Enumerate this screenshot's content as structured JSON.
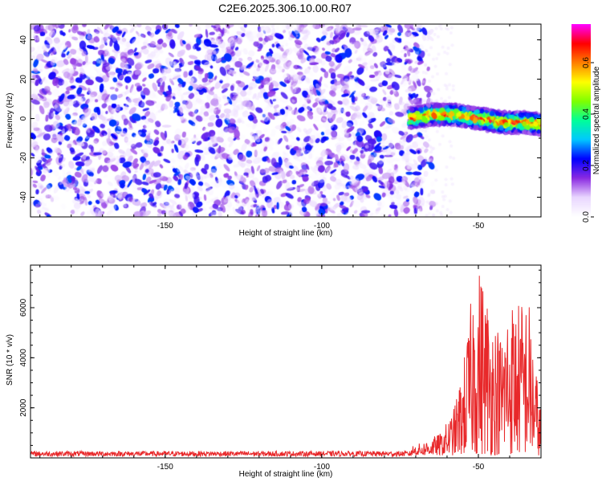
{
  "title": "C2E6.2025.306.10.00.R07",
  "chart_data": [
    {
      "type": "heatmap",
      "xlabel": "Height of straight line (km)",
      "ylabel": "Frequency (Hz)",
      "xlim": [
        -193,
        -30
      ],
      "ylim": [
        -50,
        48
      ],
      "xticks": [
        -150,
        -100,
        -50
      ],
      "yticks": [
        -40,
        -20,
        0,
        20,
        40
      ],
      "tick_labels_x": [
        "-150",
        "-100",
        "-50"
      ],
      "tick_labels_y": [
        "-40",
        "-20",
        "0",
        "20",
        "40"
      ],
      "colorbar": {
        "label": "Normalized spectral amplitude",
        "range": [
          0,
          0.75
        ],
        "ticks": [
          0.0,
          0.2,
          0.4,
          0.6
        ],
        "tick_labels": [
          "0.0",
          "0.2",
          "0.4",
          "0.6"
        ],
        "colormap": [
          "#ffffff",
          "#e9d6ff",
          "#8a2be2",
          "#0000ff",
          "#00c8ff",
          "#00ff99",
          "#7fff00",
          "#ffff00",
          "#ff8000",
          "#ff0000",
          "#ff00ff"
        ]
      },
      "noise_region": {
        "x_range": [
          -193,
          -68
        ],
        "freq_range": [
          -50,
          48
        ],
        "typical_amplitude": 0.05
      },
      "signal_trace": {
        "x_range": [
          -72,
          -30
        ],
        "center_freq": [
          {
            "x": -72,
            "y": 0
          },
          {
            "x": -65,
            "y": 2
          },
          {
            "x": -58,
            "y": 2
          },
          {
            "x": -50,
            "y": 0
          },
          {
            "x": -42,
            "y": -2
          },
          {
            "x": -35,
            "y": -2
          },
          {
            "x": -30,
            "y": -3
          }
        ],
        "bandwidth_hz": 10,
        "peak_amplitude": 0.75
      }
    },
    {
      "type": "line",
      "xlabel": "Height of straight line (km)",
      "ylabel": "SNR (10 * v/v)",
      "xlim": [
        -193,
        -30
      ],
      "ylim": [
        0,
        7700
      ],
      "xticks": [
        -150,
        -100,
        -50
      ],
      "yticks": [
        2000,
        4000,
        6000
      ],
      "tick_labels_x": [
        "-150",
        "-100",
        "-50"
      ],
      "tick_labels_y": [
        "2000",
        "4000",
        "6000"
      ],
      "series": [
        {
          "color": "#e8282a",
          "envelope": [
            {
              "x": -193,
              "y": 250
            },
            {
              "x": -75,
              "y": 300
            },
            {
              "x": -68,
              "y": 500
            },
            {
              "x": -62,
              "y": 900
            },
            {
              "x": -58,
              "y": 1800
            },
            {
              "x": -55,
              "y": 3500
            },
            {
              "x": -53,
              "y": 5500
            },
            {
              "x": -51,
              "y": 7600
            },
            {
              "x": -49,
              "y": 7500
            },
            {
              "x": -46,
              "y": 6000
            },
            {
              "x": -43,
              "y": 5000
            },
            {
              "x": -40,
              "y": 6400
            },
            {
              "x": -37,
              "y": 6200
            },
            {
              "x": -34,
              "y": 6500
            },
            {
              "x": -32,
              "y": 4000
            },
            {
              "x": -30,
              "y": 1800
            }
          ],
          "baseline_noise": 150
        }
      ]
    }
  ]
}
